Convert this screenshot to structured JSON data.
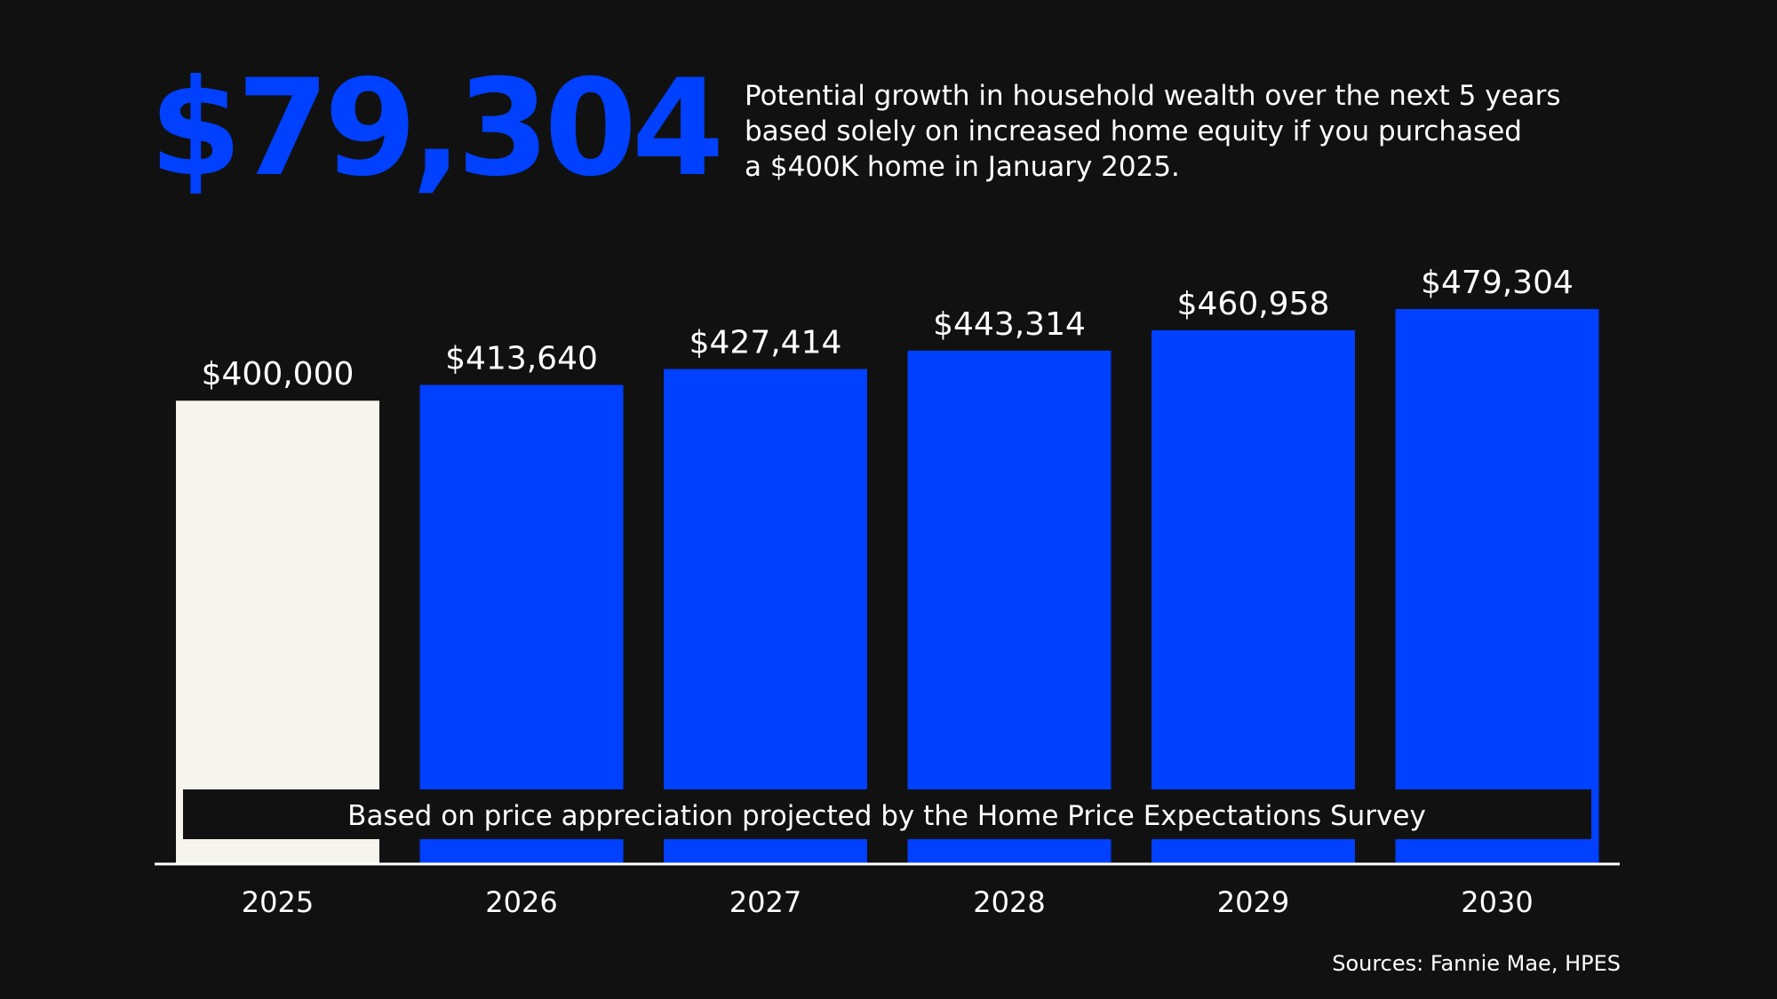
{
  "headline": {
    "amount": "$79,304",
    "description_lines": [
      "Potential growth in household wealth over the next 5 years",
      "based solely on increased home equity if you purchased",
      "a $400K home in January 2025."
    ]
  },
  "colors": {
    "background": "#111111",
    "accent": "#0040FF",
    "baseline_bar": "#F5F5EE",
    "text": "#FFFFFF",
    "banner_background": "#111111"
  },
  "chart_data": {
    "type": "bar",
    "categories": [
      "2025",
      "2026",
      "2027",
      "2028",
      "2029",
      "2030"
    ],
    "values": [
      400000,
      413640,
      427414,
      443314,
      460958,
      479304
    ],
    "value_labels": [
      "$400,000",
      "$413,640",
      "$427,414",
      "$443,314",
      "$460,958",
      "$479,304"
    ],
    "title": "",
    "xlabel": "",
    "ylabel": "",
    "ylim": [
      0,
      479304
    ],
    "grid": false,
    "annotation": "Based on price appreciation projected by the Home Price Expectations Survey"
  },
  "source": "Sources: Fannie Mae, HPES"
}
